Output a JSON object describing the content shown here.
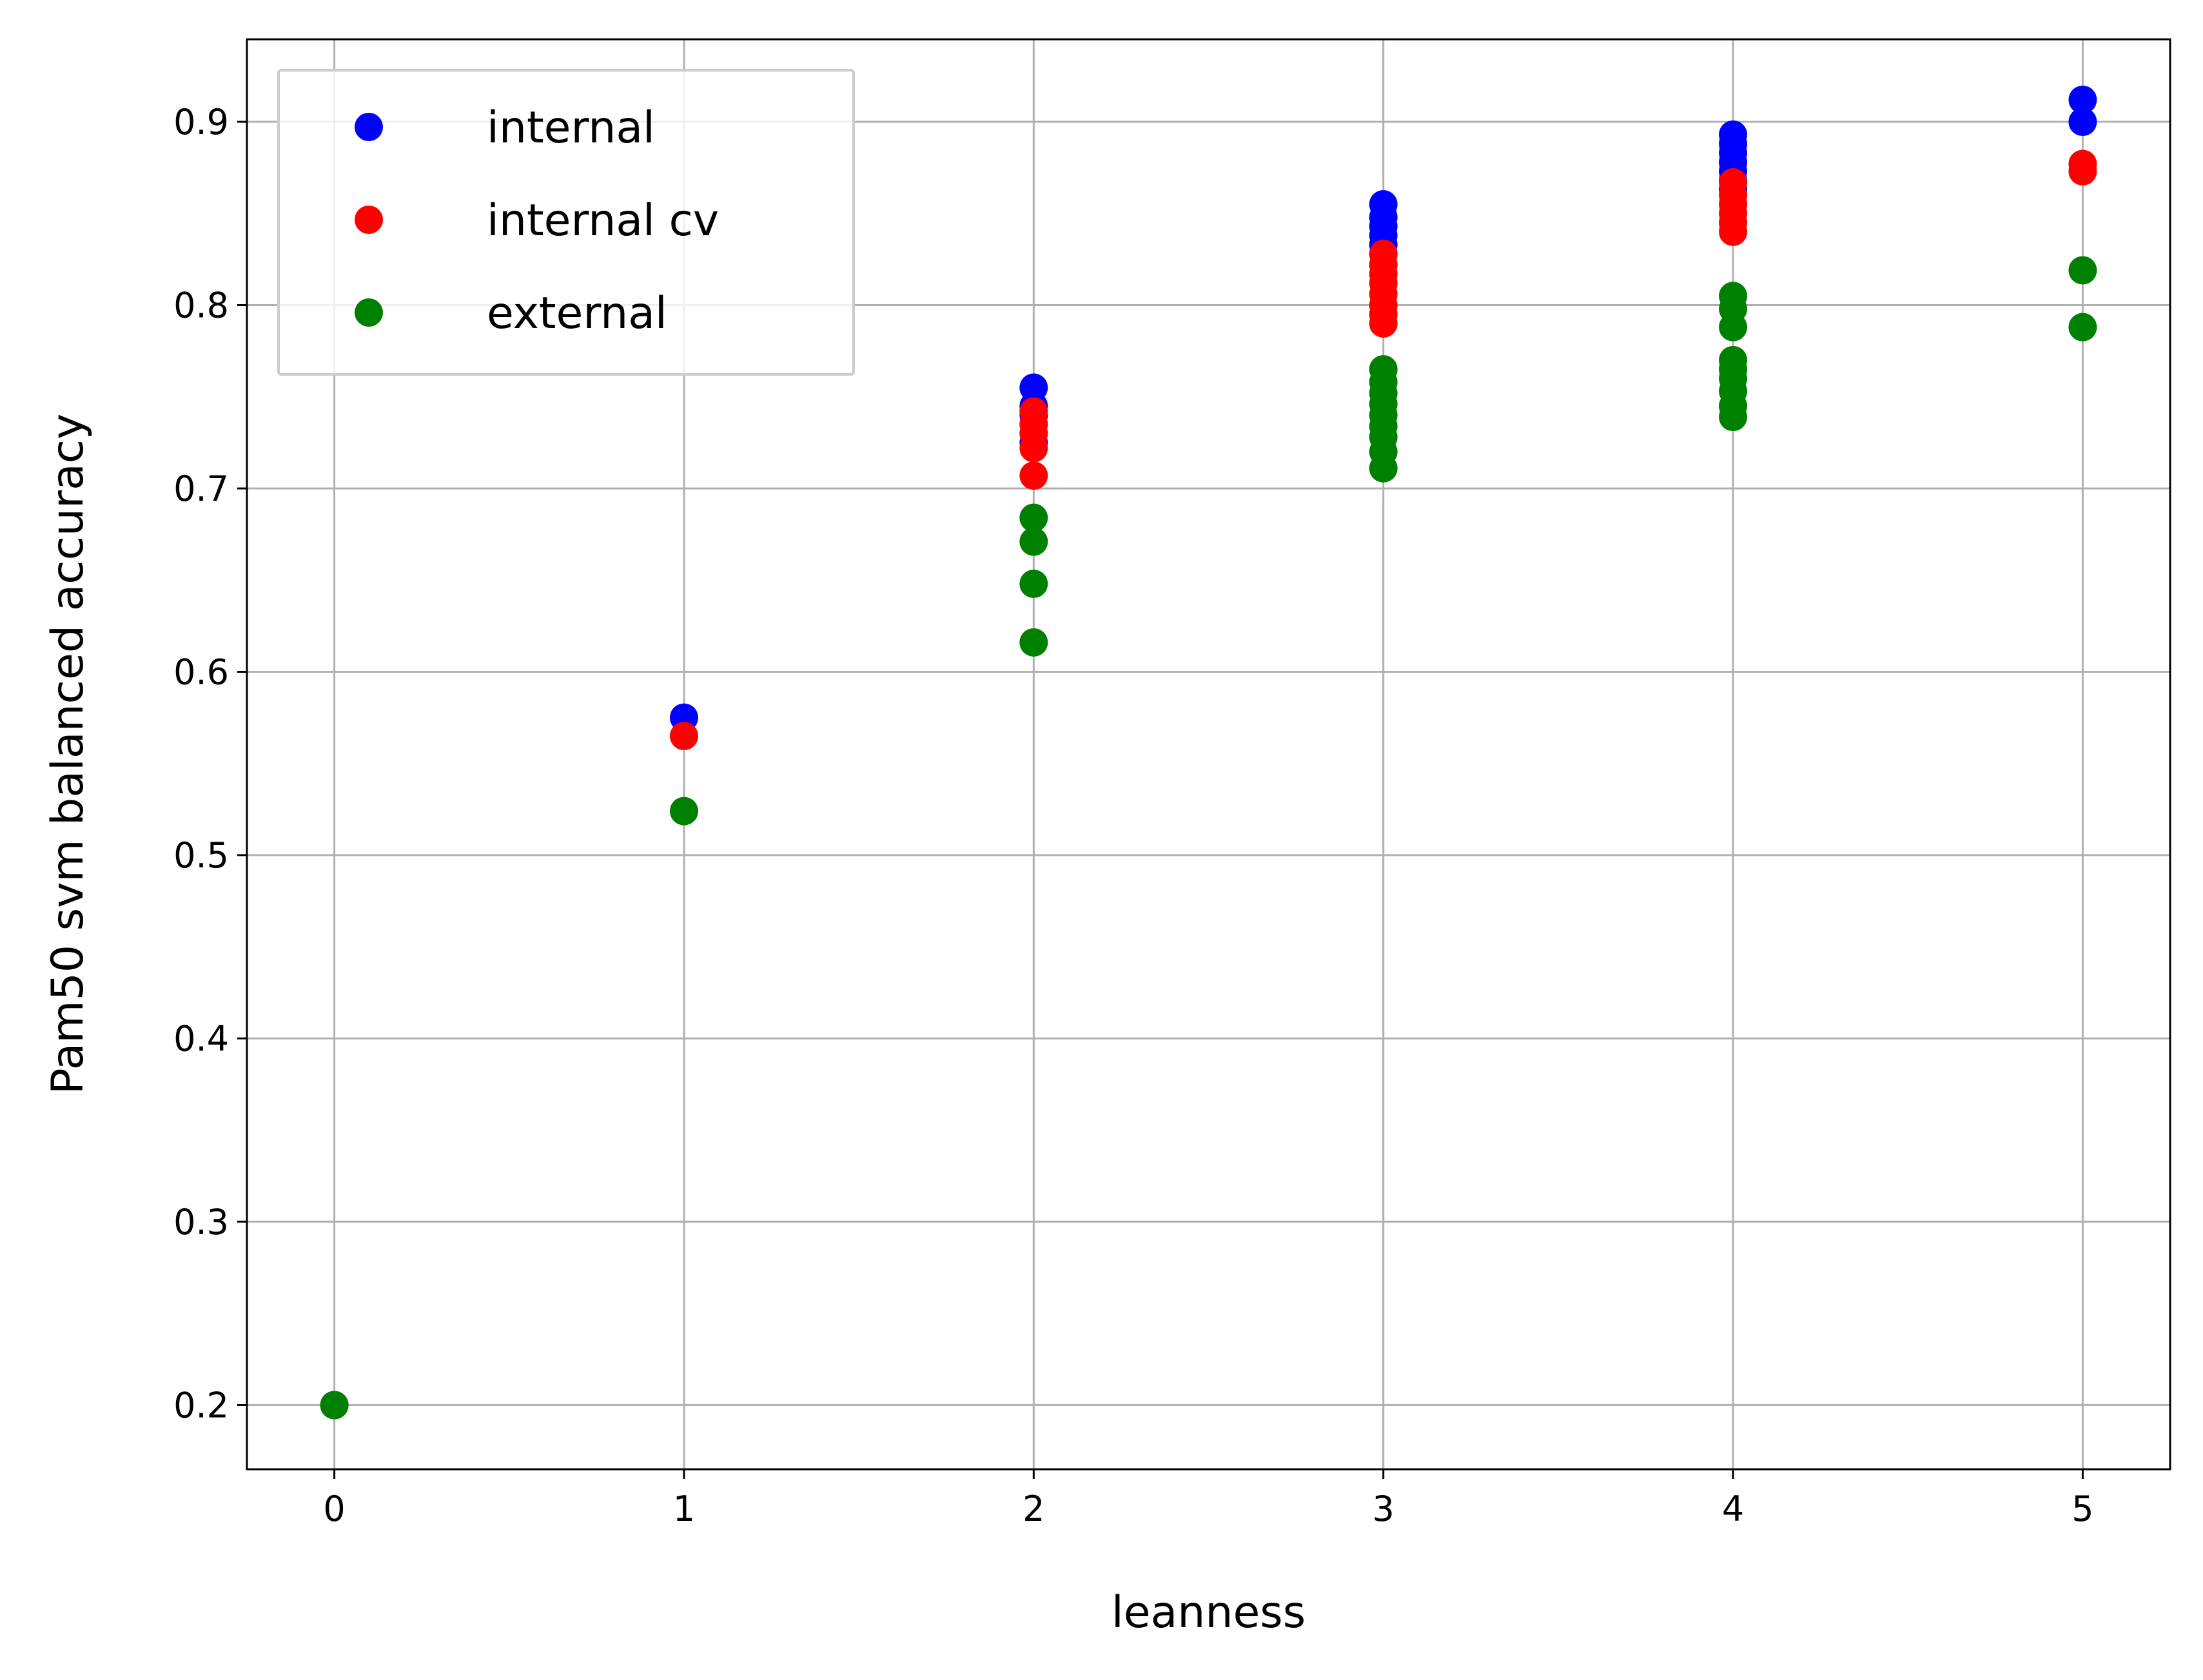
{
  "chart_data": {
    "type": "scatter",
    "title": "",
    "xlabel": "leanness",
    "ylabel": "Pam50 svm balanced accuracy",
    "xlim": [
      -0.25,
      5.25
    ],
    "ylim": [
      0.165,
      0.945
    ],
    "xticks": [
      0,
      1,
      2,
      3,
      4,
      5
    ],
    "yticks": [
      0.2,
      0.3,
      0.4,
      0.5,
      0.6,
      0.7,
      0.8,
      0.9
    ],
    "grid": true,
    "legend_position": "top-left",
    "series": [
      {
        "name": "internal",
        "color": "#0000ff",
        "points": [
          [
            0,
            0.2
          ],
          [
            1,
            0.575
          ],
          [
            2,
            0.755
          ],
          [
            2,
            0.745
          ],
          [
            2,
            0.74
          ],
          [
            2,
            0.735
          ],
          [
            2,
            0.73
          ],
          [
            2,
            0.725
          ],
          [
            3,
            0.855
          ],
          [
            3,
            0.848
          ],
          [
            3,
            0.843
          ],
          [
            3,
            0.838
          ],
          [
            3,
            0.833
          ],
          [
            3,
            0.828
          ],
          [
            3,
            0.822
          ],
          [
            4,
            0.893
          ],
          [
            4,
            0.888
          ],
          [
            4,
            0.883
          ],
          [
            4,
            0.878
          ],
          [
            4,
            0.873
          ],
          [
            4,
            0.868
          ],
          [
            4,
            0.863
          ],
          [
            5,
            0.912
          ],
          [
            5,
            0.9
          ]
        ]
      },
      {
        "name": "internal cv",
        "color": "#ff0000",
        "points": [
          [
            0,
            0.2
          ],
          [
            1,
            0.565
          ],
          [
            2,
            0.742
          ],
          [
            2,
            0.735
          ],
          [
            2,
            0.73
          ],
          [
            2,
            0.722
          ],
          [
            2,
            0.707
          ],
          [
            3,
            0.828
          ],
          [
            3,
            0.822
          ],
          [
            3,
            0.817
          ],
          [
            3,
            0.812
          ],
          [
            3,
            0.806
          ],
          [
            3,
            0.8
          ],
          [
            3,
            0.795
          ],
          [
            3,
            0.79
          ],
          [
            4,
            0.867
          ],
          [
            4,
            0.86
          ],
          [
            4,
            0.855
          ],
          [
            4,
            0.85
          ],
          [
            4,
            0.845
          ],
          [
            4,
            0.84
          ],
          [
            5,
            0.877
          ],
          [
            5,
            0.873
          ]
        ]
      },
      {
        "name": "external",
        "color": "#008000",
        "points": [
          [
            0,
            0.2
          ],
          [
            1,
            0.524
          ],
          [
            2,
            0.684
          ],
          [
            2,
            0.671
          ],
          [
            2,
            0.648
          ],
          [
            2,
            0.616
          ],
          [
            3,
            0.765
          ],
          [
            3,
            0.758
          ],
          [
            3,
            0.752
          ],
          [
            3,
            0.746
          ],
          [
            3,
            0.74
          ],
          [
            3,
            0.734
          ],
          [
            3,
            0.728
          ],
          [
            3,
            0.72
          ],
          [
            3,
            0.711
          ],
          [
            4,
            0.805
          ],
          [
            4,
            0.798
          ],
          [
            4,
            0.788
          ],
          [
            4,
            0.77
          ],
          [
            4,
            0.765
          ],
          [
            4,
            0.76
          ],
          [
            4,
            0.753
          ],
          [
            4,
            0.745
          ],
          [
            4,
            0.739
          ],
          [
            5,
            0.819
          ],
          [
            5,
            0.788
          ]
        ]
      }
    ]
  }
}
